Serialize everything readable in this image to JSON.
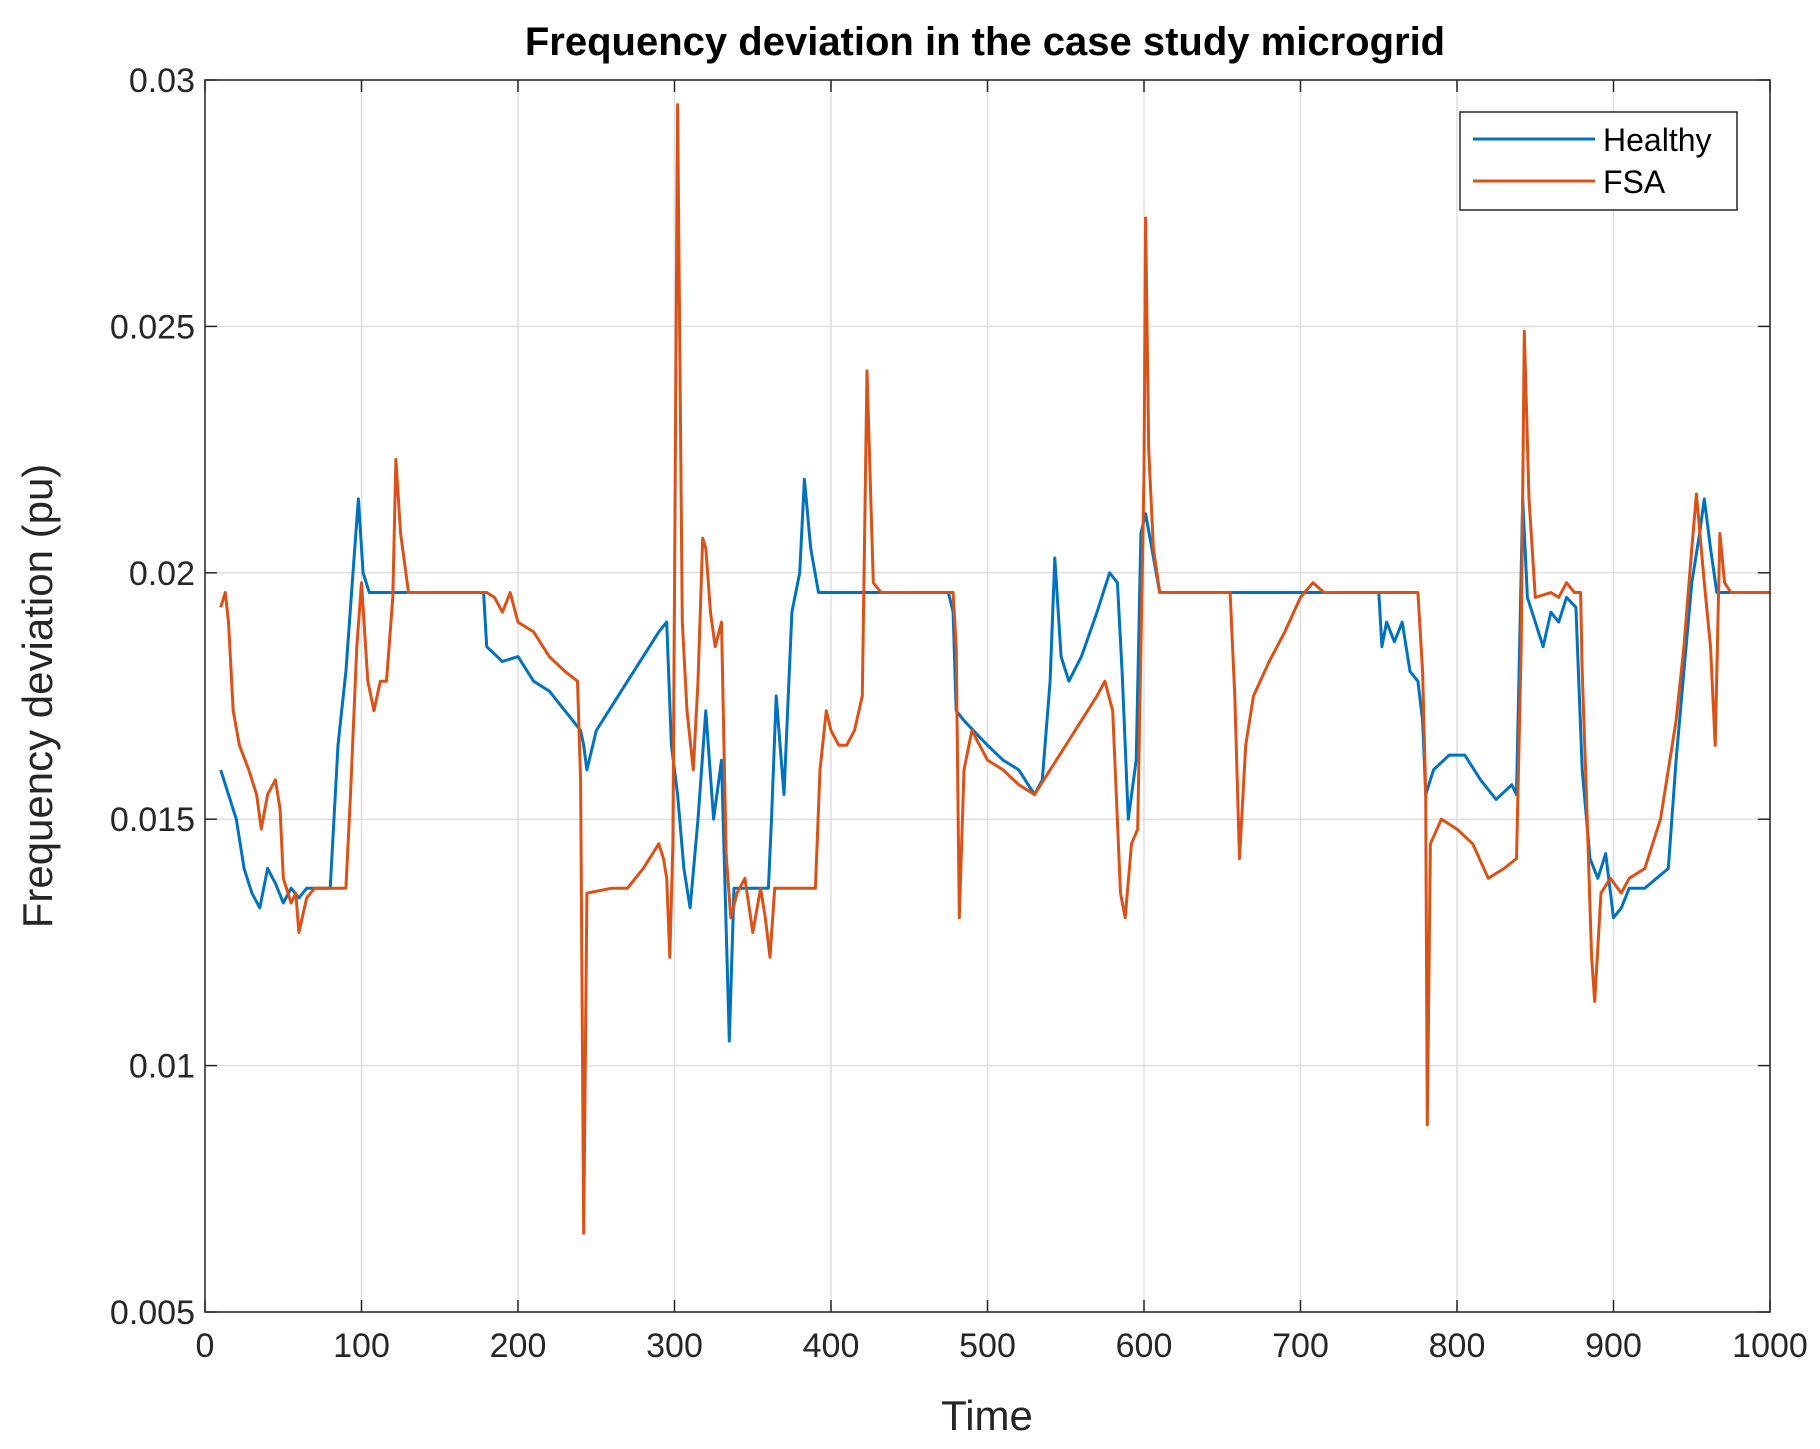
{
  "chart_data": {
    "type": "line",
    "title": "Frequency deviation in the case study microgrid",
    "xlabel": "Time",
    "ylabel": "Frequency deviation (pu)",
    "xlim": [
      0,
      1000
    ],
    "ylim": [
      0.005,
      0.03
    ],
    "x_ticks": [
      0,
      100,
      200,
      300,
      400,
      500,
      600,
      700,
      800,
      900,
      1000
    ],
    "x_tick_labels": [
      "0",
      "100",
      "200",
      "300",
      "400",
      "500",
      "600",
      "700",
      "800",
      "900",
      "1000"
    ],
    "y_ticks": [
      0.005,
      0.01,
      0.015,
      0.02,
      0.025,
      0.03
    ],
    "y_tick_labels": [
      "0.005",
      "0.01",
      "0.015",
      "0.02",
      "0.025",
      "0.03"
    ],
    "grid": true,
    "legend_position": "top-right",
    "series": [
      {
        "name": "Healthy",
        "color": "#0072BD",
        "points": [
          [
            10,
            0.016
          ],
          [
            15,
            0.0155
          ],
          [
            20,
            0.015
          ],
          [
            25,
            0.014
          ],
          [
            30,
            0.0135
          ],
          [
            35,
            0.0132
          ],
          [
            40,
            0.014
          ],
          [
            45,
            0.0137
          ],
          [
            50,
            0.0133
          ],
          [
            55,
            0.0136
          ],
          [
            60,
            0.0134
          ],
          [
            65,
            0.0136
          ],
          [
            80,
            0.0136
          ],
          [
            85,
            0.0165
          ],
          [
            90,
            0.018
          ],
          [
            95,
            0.0202
          ],
          [
            98,
            0.0215
          ],
          [
            101,
            0.02
          ],
          [
            105,
            0.0196
          ],
          [
            130,
            0.0196
          ],
          [
            178,
            0.0196
          ],
          [
            180,
            0.0185
          ],
          [
            190,
            0.0182
          ],
          [
            200,
            0.0183
          ],
          [
            210,
            0.0178
          ],
          [
            220,
            0.0176
          ],
          [
            230,
            0.0172
          ],
          [
            240,
            0.0168
          ],
          [
            242,
            0.0165
          ],
          [
            244,
            0.016
          ],
          [
            250,
            0.0168
          ],
          [
            260,
            0.0173
          ],
          [
            270,
            0.0178
          ],
          [
            280,
            0.0183
          ],
          [
            290,
            0.0188
          ],
          [
            295,
            0.019
          ],
          [
            298,
            0.0165
          ],
          [
            302,
            0.0155
          ],
          [
            306,
            0.014
          ],
          [
            310,
            0.0132
          ],
          [
            315,
            0.015
          ],
          [
            320,
            0.0172
          ],
          [
            325,
            0.015
          ],
          [
            330,
            0.0162
          ],
          [
            335,
            0.0105
          ],
          [
            338,
            0.0136
          ],
          [
            360,
            0.0136
          ],
          [
            362,
            0.015
          ],
          [
            365,
            0.0175
          ],
          [
            370,
            0.0155
          ],
          [
            375,
            0.0192
          ],
          [
            380,
            0.02
          ],
          [
            383,
            0.0219
          ],
          [
            387,
            0.0205
          ],
          [
            392,
            0.0196
          ],
          [
            475,
            0.0196
          ],
          [
            478,
            0.0192
          ],
          [
            480,
            0.0172
          ],
          [
            485,
            0.017
          ],
          [
            500,
            0.0165
          ],
          [
            510,
            0.0162
          ],
          [
            520,
            0.016
          ],
          [
            530,
            0.0155
          ],
          [
            535,
            0.0158
          ],
          [
            540,
            0.0178
          ],
          [
            543,
            0.0203
          ],
          [
            547,
            0.0183
          ],
          [
            552,
            0.0178
          ],
          [
            560,
            0.0183
          ],
          [
            570,
            0.0192
          ],
          [
            578,
            0.02
          ],
          [
            583,
            0.0198
          ],
          [
            586,
            0.018
          ],
          [
            590,
            0.015
          ],
          [
            595,
            0.0162
          ],
          [
            598,
            0.0208
          ],
          [
            601,
            0.0212
          ],
          [
            605,
            0.0205
          ],
          [
            610,
            0.0196
          ],
          [
            750,
            0.0196
          ],
          [
            752,
            0.0185
          ],
          [
            755,
            0.019
          ],
          [
            760,
            0.0186
          ],
          [
            765,
            0.019
          ],
          [
            770,
            0.018
          ],
          [
            775,
            0.0178
          ],
          [
            778,
            0.017
          ],
          [
            780,
            0.0155
          ],
          [
            785,
            0.016
          ],
          [
            795,
            0.0163
          ],
          [
            805,
            0.0163
          ],
          [
            815,
            0.0158
          ],
          [
            825,
            0.0154
          ],
          [
            835,
            0.0157
          ],
          [
            838,
            0.0155
          ],
          [
            842,
            0.0215
          ],
          [
            845,
            0.0195
          ],
          [
            850,
            0.019
          ],
          [
            855,
            0.0185
          ],
          [
            860,
            0.0192
          ],
          [
            865,
            0.019
          ],
          [
            870,
            0.0195
          ],
          [
            876,
            0.0193
          ],
          [
            880,
            0.016
          ],
          [
            885,
            0.0142
          ],
          [
            890,
            0.0138
          ],
          [
            895,
            0.0143
          ],
          [
            900,
            0.013
          ],
          [
            905,
            0.0132
          ],
          [
            910,
            0.0136
          ],
          [
            920,
            0.0136
          ],
          [
            935,
            0.014
          ],
          [
            940,
            0.0162
          ],
          [
            945,
            0.018
          ],
          [
            950,
            0.0198
          ],
          [
            955,
            0.0208
          ],
          [
            958,
            0.0215
          ],
          [
            962,
            0.0205
          ],
          [
            966,
            0.0196
          ],
          [
            1000,
            0.0196
          ]
        ]
      },
      {
        "name": "FSA",
        "color": "#D95319",
        "points": [
          [
            10,
            0.0193
          ],
          [
            13,
            0.0196
          ],
          [
            15,
            0.019
          ],
          [
            18,
            0.0172
          ],
          [
            22,
            0.0165
          ],
          [
            28,
            0.016
          ],
          [
            33,
            0.0155
          ],
          [
            36,
            0.0148
          ],
          [
            40,
            0.0155
          ],
          [
            45,
            0.0158
          ],
          [
            48,
            0.0152
          ],
          [
            50,
            0.0138
          ],
          [
            55,
            0.0133
          ],
          [
            58,
            0.0135
          ],
          [
            60,
            0.0127
          ],
          [
            65,
            0.0134
          ],
          [
            70,
            0.0136
          ],
          [
            90,
            0.0136
          ],
          [
            93,
            0.0155
          ],
          [
            97,
            0.0185
          ],
          [
            100,
            0.0198
          ],
          [
            104,
            0.0178
          ],
          [
            108,
            0.0172
          ],
          [
            112,
            0.0178
          ],
          [
            116,
            0.0178
          ],
          [
            120,
            0.0195
          ],
          [
            122,
            0.0223
          ],
          [
            125,
            0.0208
          ],
          [
            130,
            0.0196
          ],
          [
            180,
            0.0196
          ],
          [
            185,
            0.0195
          ],
          [
            190,
            0.0192
          ],
          [
            195,
            0.0196
          ],
          [
            200,
            0.019
          ],
          [
            210,
            0.0188
          ],
          [
            220,
            0.0183
          ],
          [
            230,
            0.018
          ],
          [
            238,
            0.0178
          ],
          [
            240,
            0.0158
          ],
          [
            242,
            0.0066
          ],
          [
            244,
            0.0135
          ],
          [
            260,
            0.0136
          ],
          [
            270,
            0.0136
          ],
          [
            280,
            0.014
          ],
          [
            290,
            0.0145
          ],
          [
            293,
            0.0142
          ],
          [
            295,
            0.0138
          ],
          [
            297,
            0.0122
          ],
          [
            299,
            0.0145
          ],
          [
            302,
            0.0295
          ],
          [
            305,
            0.019
          ],
          [
            308,
            0.0172
          ],
          [
            312,
            0.016
          ],
          [
            315,
            0.0178
          ],
          [
            318,
            0.0207
          ],
          [
            320,
            0.0205
          ],
          [
            323,
            0.0192
          ],
          [
            326,
            0.0185
          ],
          [
            330,
            0.019
          ],
          [
            333,
            0.0143
          ],
          [
            336,
            0.013
          ],
          [
            340,
            0.0135
          ],
          [
            345,
            0.0138
          ],
          [
            350,
            0.0127
          ],
          [
            355,
            0.0136
          ],
          [
            358,
            0.013
          ],
          [
            361,
            0.0122
          ],
          [
            364,
            0.0136
          ],
          [
            390,
            0.0136
          ],
          [
            393,
            0.016
          ],
          [
            397,
            0.0172
          ],
          [
            400,
            0.0168
          ],
          [
            405,
            0.0165
          ],
          [
            410,
            0.0165
          ],
          [
            415,
            0.0168
          ],
          [
            420,
            0.0175
          ],
          [
            423,
            0.0241
          ],
          [
            427,
            0.0198
          ],
          [
            432,
            0.0196
          ],
          [
            478,
            0.0196
          ],
          [
            480,
            0.0185
          ],
          [
            482,
            0.013
          ],
          [
            485,
            0.016
          ],
          [
            490,
            0.0168
          ],
          [
            500,
            0.0162
          ],
          [
            510,
            0.016
          ],
          [
            520,
            0.0157
          ],
          [
            530,
            0.0155
          ],
          [
            540,
            0.016
          ],
          [
            550,
            0.0165
          ],
          [
            560,
            0.017
          ],
          [
            570,
            0.0175
          ],
          [
            575,
            0.0178
          ],
          [
            580,
            0.0172
          ],
          [
            585,
            0.0135
          ],
          [
            588,
            0.013
          ],
          [
            592,
            0.0145
          ],
          [
            596,
            0.0148
          ],
          [
            600,
            0.022
          ],
          [
            601,
            0.0272
          ],
          [
            603,
            0.0225
          ],
          [
            606,
            0.0205
          ],
          [
            610,
            0.0196
          ],
          [
            655,
            0.0196
          ],
          [
            658,
            0.0175
          ],
          [
            661,
            0.0142
          ],
          [
            665,
            0.0165
          ],
          [
            670,
            0.0175
          ],
          [
            680,
            0.0182
          ],
          [
            690,
            0.0188
          ],
          [
            700,
            0.0195
          ],
          [
            708,
            0.0198
          ],
          [
            715,
            0.0196
          ],
          [
            775,
            0.0196
          ],
          [
            778,
            0.018
          ],
          [
            780,
            0.0155
          ],
          [
            781,
            0.0088
          ],
          [
            783,
            0.0145
          ],
          [
            790,
            0.015
          ],
          [
            800,
            0.0148
          ],
          [
            810,
            0.0145
          ],
          [
            820,
            0.0138
          ],
          [
            830,
            0.014
          ],
          [
            838,
            0.0142
          ],
          [
            841,
            0.0185
          ],
          [
            843,
            0.0249
          ],
          [
            846,
            0.0215
          ],
          [
            850,
            0.0195
          ],
          [
            860,
            0.0196
          ],
          [
            865,
            0.0195
          ],
          [
            870,
            0.0198
          ],
          [
            875,
            0.0196
          ],
          [
            879,
            0.0196
          ],
          [
            880,
            0.018
          ],
          [
            883,
            0.0152
          ],
          [
            886,
            0.0122
          ],
          [
            888,
            0.0113
          ],
          [
            892,
            0.0135
          ],
          [
            898,
            0.0138
          ],
          [
            905,
            0.0135
          ],
          [
            910,
            0.0138
          ],
          [
            920,
            0.014
          ],
          [
            930,
            0.015
          ],
          [
            935,
            0.016
          ],
          [
            940,
            0.017
          ],
          [
            945,
            0.0185
          ],
          [
            950,
            0.0205
          ],
          [
            953,
            0.0216
          ],
          [
            958,
            0.0198
          ],
          [
            962,
            0.0185
          ],
          [
            965,
            0.0165
          ],
          [
            968,
            0.0208
          ],
          [
            971,
            0.0198
          ],
          [
            975,
            0.0196
          ],
          [
            1000,
            0.0196
          ]
        ]
      }
    ]
  }
}
